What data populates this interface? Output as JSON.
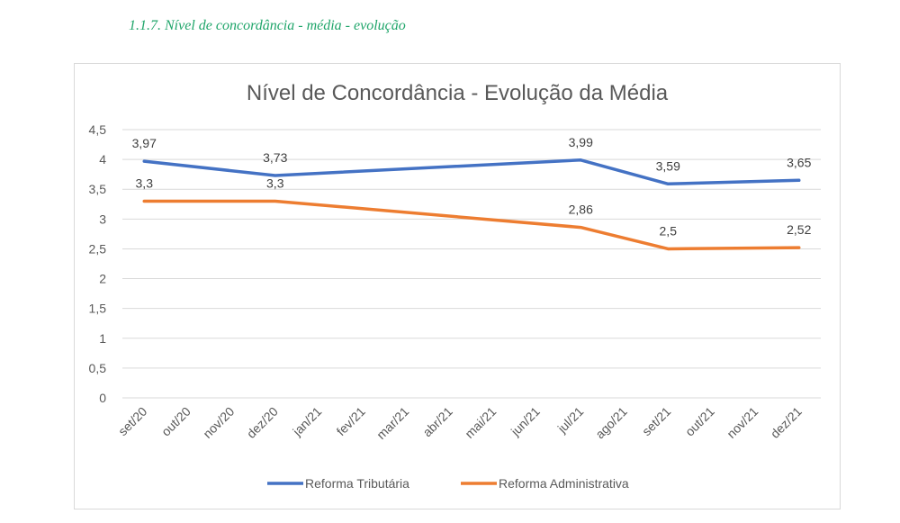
{
  "heading": "1.1.7. Nível de concordância - média -  evolução",
  "chart_data": {
    "type": "line",
    "title": "Nível de Concordância - Evolução da Média",
    "xlabel": "",
    "ylabel": "",
    "categories": [
      "set/20",
      "out/20",
      "nov/20",
      "dez/20",
      "jan/21",
      "fev/21",
      "mar/21",
      "abr/21",
      "mai/21",
      "jun/21",
      "jul/21",
      "ago/21",
      "set/21",
      "out/21",
      "nov/21",
      "dez/21"
    ],
    "y_ticks": [
      "0",
      "0,5",
      "1",
      "1,5",
      "2",
      "2,5",
      "3",
      "3,5",
      "4",
      "4,5"
    ],
    "ylim": [
      0,
      4.5
    ],
    "grid": true,
    "legend": "bottom",
    "series": [
      {
        "name": "Reforma Tributária",
        "color": "#4472c4",
        "points": [
          {
            "x": "set/20",
            "y": 3.97,
            "label": "3,97"
          },
          {
            "x": "dez/20",
            "y": 3.73,
            "label": "3,73"
          },
          {
            "x": "jul/21",
            "y": 3.99,
            "label": "3,99"
          },
          {
            "x": "set/21",
            "y": 3.59,
            "label": "3,59"
          },
          {
            "x": "dez/21",
            "y": 3.65,
            "label": "3,65"
          }
        ]
      },
      {
        "name": "Reforma Administrativa",
        "color": "#ed7d31",
        "points": [
          {
            "x": "set/20",
            "y": 3.3,
            "label": "3,3"
          },
          {
            "x": "dez/20",
            "y": 3.3,
            "label": "3,3"
          },
          {
            "x": "jul/21",
            "y": 2.86,
            "label": "2,86"
          },
          {
            "x": "set/21",
            "y": 2.5,
            "label": "2,5"
          },
          {
            "x": "dez/21",
            "y": 2.52,
            "label": "2,52"
          }
        ]
      }
    ]
  }
}
